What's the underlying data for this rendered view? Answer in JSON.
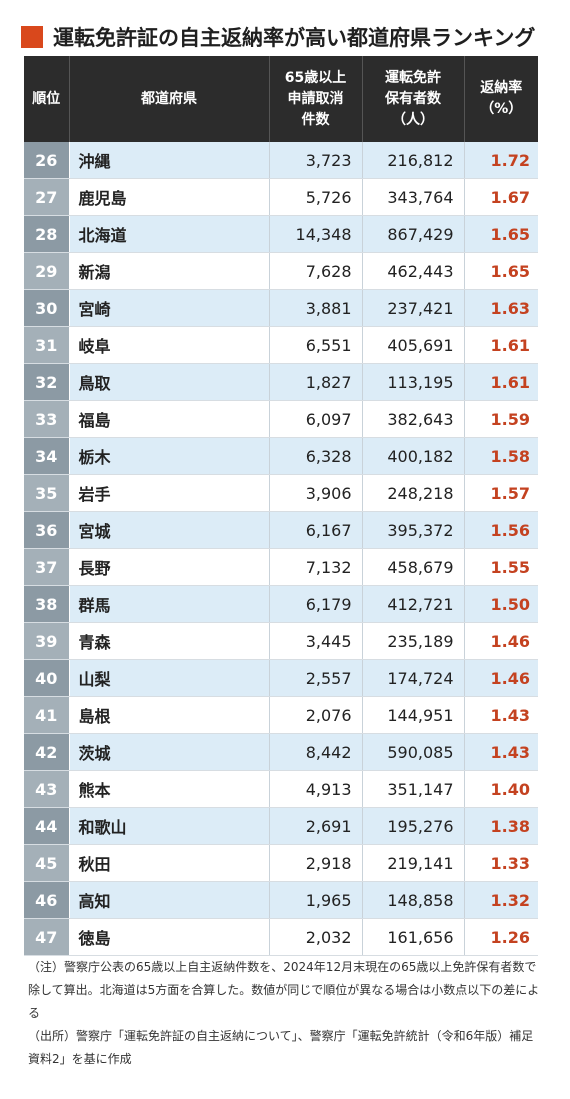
{
  "title": "運転免許証の自主返納率が高い都道府県ランキング",
  "headers": {
    "rank": "順位",
    "prefecture": "都道府県",
    "cancellations": [
      "65歳以上",
      "申請取消",
      "件数"
    ],
    "holders": [
      "運転免許",
      "保有者数",
      "（人）"
    ],
    "rate": [
      "返納率",
      "（%）"
    ]
  },
  "rows": [
    {
      "rank": "26",
      "pref": "沖縄",
      "cancel": "3,723",
      "holders": "216,812",
      "rate": "1.72"
    },
    {
      "rank": "27",
      "pref": "鹿児島",
      "cancel": "5,726",
      "holders": "343,764",
      "rate": "1.67"
    },
    {
      "rank": "28",
      "pref": "北海道",
      "cancel": "14,348",
      "holders": "867,429",
      "rate": "1.65"
    },
    {
      "rank": "29",
      "pref": "新潟",
      "cancel": "7,628",
      "holders": "462,443",
      "rate": "1.65"
    },
    {
      "rank": "30",
      "pref": "宮崎",
      "cancel": "3,881",
      "holders": "237,421",
      "rate": "1.63"
    },
    {
      "rank": "31",
      "pref": "岐阜",
      "cancel": "6,551",
      "holders": "405,691",
      "rate": "1.61"
    },
    {
      "rank": "32",
      "pref": "鳥取",
      "cancel": "1,827",
      "holders": "113,195",
      "rate": "1.61"
    },
    {
      "rank": "33",
      "pref": "福島",
      "cancel": "6,097",
      "holders": "382,643",
      "rate": "1.59"
    },
    {
      "rank": "34",
      "pref": "栃木",
      "cancel": "6,328",
      "holders": "400,182",
      "rate": "1.58"
    },
    {
      "rank": "35",
      "pref": "岩手",
      "cancel": "3,906",
      "holders": "248,218",
      "rate": "1.57"
    },
    {
      "rank": "36",
      "pref": "宮城",
      "cancel": "6,167",
      "holders": "395,372",
      "rate": "1.56"
    },
    {
      "rank": "37",
      "pref": "長野",
      "cancel": "7,132",
      "holders": "458,679",
      "rate": "1.55"
    },
    {
      "rank": "38",
      "pref": "群馬",
      "cancel": "6,179",
      "holders": "412,721",
      "rate": "1.50"
    },
    {
      "rank": "39",
      "pref": "青森",
      "cancel": "3,445",
      "holders": "235,189",
      "rate": "1.46"
    },
    {
      "rank": "40",
      "pref": "山梨",
      "cancel": "2,557",
      "holders": "174,724",
      "rate": "1.46"
    },
    {
      "rank": "41",
      "pref": "島根",
      "cancel": "2,076",
      "holders": "144,951",
      "rate": "1.43"
    },
    {
      "rank": "42",
      "pref": "茨城",
      "cancel": "8,442",
      "holders": "590,085",
      "rate": "1.43"
    },
    {
      "rank": "43",
      "pref": "熊本",
      "cancel": "4,913",
      "holders": "351,147",
      "rate": "1.40"
    },
    {
      "rank": "44",
      "pref": "和歌山",
      "cancel": "2,691",
      "holders": "195,276",
      "rate": "1.38"
    },
    {
      "rank": "45",
      "pref": "秋田",
      "cancel": "2,918",
      "holders": "219,141",
      "rate": "1.33"
    },
    {
      "rank": "46",
      "pref": "高知",
      "cancel": "1,965",
      "holders": "148,858",
      "rate": "1.32"
    },
    {
      "rank": "47",
      "pref": "徳島",
      "cancel": "2,032",
      "holders": "161,656",
      "rate": "1.26"
    }
  ],
  "notes": [
    "（注）警察庁公表の65歳以上自主返納件数を、2024年12月末現在の65歳以上免許保有者数で除して算出。北海道は5方面を合算した。数値が同じで順位が異なる場合は小数点以下の差による",
    "（出所）警察庁「運転免許証の自主返納について」、警察庁「運転免許統計（令和6年版）補足資料2」を基に作成"
  ],
  "colors": {
    "accent": "#d9481c",
    "rate_text": "#c44220",
    "header_bg": "#2c2c2c",
    "row_blue": "#dcecf7",
    "rank_bg": "#8c9aa4",
    "rank_bg_alt": "#a4b0b8"
  }
}
